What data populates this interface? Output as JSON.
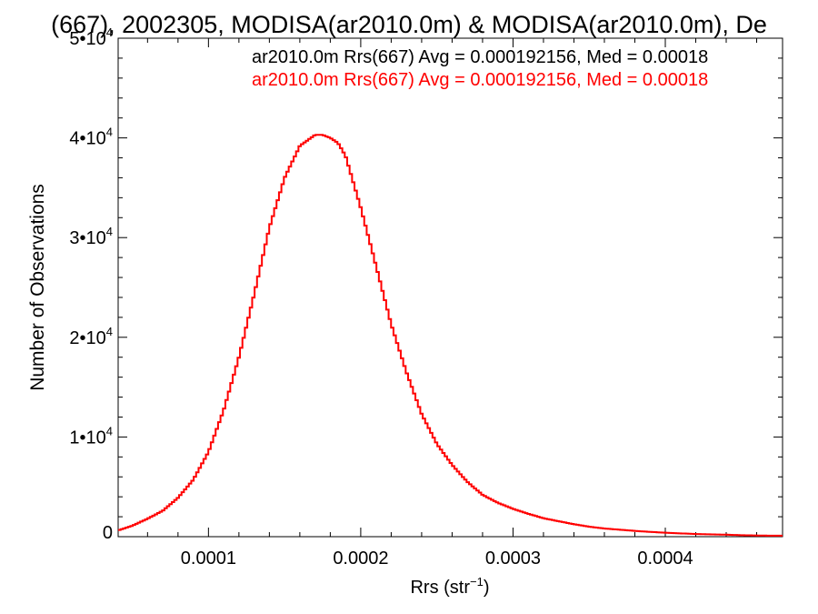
{
  "chart_data": {
    "type": "histogram",
    "title": "(667), 2002305, MODISA(ar2010.0m) & MODISA(ar2010.0m), De",
    "xlabel": "Rrs (str",
    "xlabel_sup": "−1",
    "xlabel_end": ")",
    "ylabel": "Number of Observations",
    "xlim": [
      4.07e-05,
      0.000477
    ],
    "ylim": [
      0,
      50000
    ],
    "x_ticks": [
      {
        "value": 0.0001,
        "label": "0.0001"
      },
      {
        "value": 0.0002,
        "label": "0.0002"
      },
      {
        "value": 0.0003,
        "label": "0.0003"
      },
      {
        "value": 0.0004,
        "label": "0.0004"
      }
    ],
    "y_ticks": [
      {
        "value": 0,
        "mant": "0",
        "exp": ""
      },
      {
        "value": 10000,
        "mant": "1•10",
        "exp": "4"
      },
      {
        "value": 20000,
        "mant": "2•10",
        "exp": "4"
      },
      {
        "value": 30000,
        "mant": "3•10",
        "exp": "4"
      },
      {
        "value": 40000,
        "mant": "4•10",
        "exp": "4"
      },
      {
        "value": 50000,
        "mant": "5•10",
        "exp": "4"
      }
    ],
    "grid": false,
    "legend": [
      {
        "text": "ar2010.0m Rrs(667) Avg = 0.000192156, Med = 0.00018",
        "color": "#000000"
      },
      {
        "text": "ar2010.0m Rrs(667) Avg = 0.000192156, Med = 0.00018",
        "color": "#ff0000"
      }
    ],
    "series": [
      {
        "color": "#ff0000",
        "x": [
          4e-05,
          5e-05,
          6e-05,
          7e-05,
          8e-05,
          9e-05,
          0.0001,
          0.00011,
          0.00012,
          0.00013,
          0.00014,
          0.00015,
          0.00016,
          0.00017,
          0.000175,
          0.00018,
          0.000185,
          0.00019,
          0.0002,
          0.00021,
          0.00022,
          0.00023,
          0.00024,
          0.00025,
          0.00026,
          0.00027,
          0.00028,
          0.00029,
          0.0003,
          0.00031,
          0.00032,
          0.00033,
          0.00034,
          0.00035,
          0.00036,
          0.00037,
          0.00038,
          0.00039,
          0.0004,
          0.00041,
          0.00042,
          0.00043,
          0.00044,
          0.00045,
          0.00046,
          0.00047,
          0.000477
        ],
        "y": [
          600,
          1100,
          1800,
          2600,
          3900,
          5700,
          8500,
          12700,
          18000,
          24300,
          31000,
          36000,
          39200,
          40300,
          40300,
          40000,
          39500,
          38200,
          33000,
          27200,
          21300,
          16500,
          12300,
          9300,
          7200,
          5500,
          4200,
          3400,
          2800,
          2300,
          1850,
          1550,
          1250,
          1000,
          820,
          700,
          580,
          480,
          400,
          330,
          270,
          230,
          200,
          150,
          120,
          100,
          100
        ]
      }
    ]
  }
}
